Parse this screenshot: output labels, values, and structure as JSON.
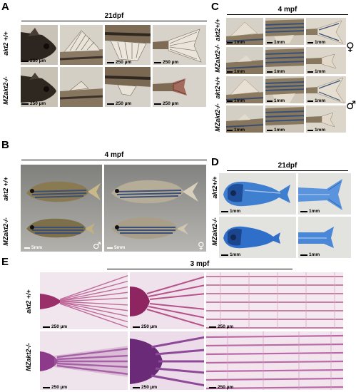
{
  "panels": {
    "A": {
      "label": "A",
      "title": "21dpf",
      "rows": [
        "akt2 +/+",
        "MZakt2-/-"
      ],
      "scales": [
        [
          "250 µm",
          "",
          "250 µm",
          "250 µm"
        ],
        [
          "250 µm",
          "",
          "250 µm",
          "250 µm"
        ]
      ]
    },
    "B": {
      "label": "B",
      "title": "4 mpf",
      "rows": [
        "akt2 +/+",
        "MZakt2-/-"
      ],
      "scales": [
        "5mm",
        "5mm"
      ],
      "sex_left": "♂",
      "sex_right": "♀"
    },
    "C": {
      "label": "C",
      "title": "4 mpf",
      "rows": [
        "akt2+/+",
        "MZakt2-/-",
        "akt2+/+",
        "MZakt2-/-"
      ],
      "scale": "1mm",
      "sex_top": "♀",
      "sex_bottom": "♂"
    },
    "D": {
      "label": "D",
      "title": "21dpf",
      "rows": [
        "akt2+/+",
        "MZakt2-/-"
      ],
      "scale": "1mm"
    },
    "E": {
      "label": "E",
      "title": "3 mpf",
      "rows": [
        "akt2 +/+",
        "MZakt2-/-"
      ],
      "scale": "250 µm"
    }
  },
  "colors": {
    "sepia_bg": "#bfb6a6",
    "fish_dark": "#3b3128",
    "fish_body": "#8b7a60",
    "stripe_blue": "#35507a",
    "alcian_blue": "#2f6fc9",
    "alizarin_pink": "#b0457e",
    "photo_grey": "#8d8d8a"
  }
}
